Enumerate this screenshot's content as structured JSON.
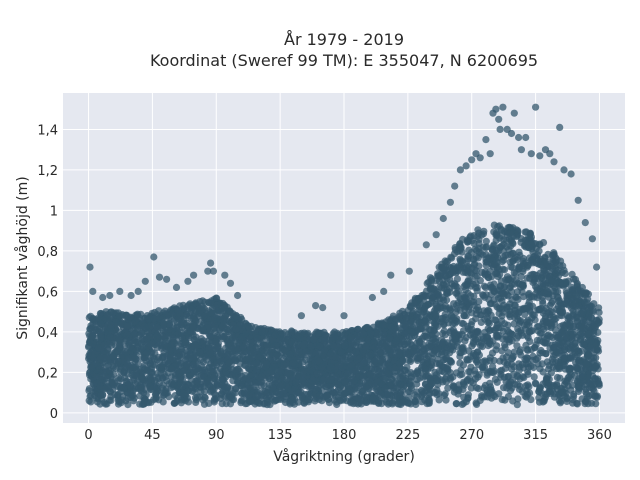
{
  "chart_data": {
    "type": "scatter",
    "title_lines": [
      "År 1979 - 2019",
      "Koordinat (Sweref 99 TM): E 355047, N 6200695"
    ],
    "xlabel": "Vågriktning (grader)",
    "ylabel": "Signifikant våghöjd (m)",
    "xlim": [
      -18,
      378
    ],
    "ylim": [
      -0.05,
      1.58
    ],
    "x_ticks": [
      0,
      45,
      90,
      135,
      180,
      225,
      270,
      315,
      360
    ],
    "x_tick_labels": [
      "0",
      "45",
      "90",
      "135",
      "180",
      "225",
      "270",
      "315",
      "360"
    ],
    "y_ticks": [
      0,
      0.2,
      0.4,
      0.6,
      0.8,
      1.0,
      1.2,
      1.4
    ],
    "y_tick_labels": [
      "0",
      "0,2",
      "0,4",
      "0,6",
      "0,8",
      "1",
      "1,2",
      "1,4"
    ],
    "grid": true,
    "colors": {
      "marker": "#34586e",
      "plot_bg": "#e5e8f0",
      "grid": "#ffffff"
    },
    "density_envelope": {
      "x": [
        0,
        10,
        20,
        30,
        45,
        60,
        75,
        90,
        105,
        120,
        135,
        150,
        165,
        180,
        195,
        210,
        225,
        240,
        255,
        270,
        285,
        300,
        315,
        330,
        345,
        360
      ],
      "y_upper": [
        0.48,
        0.5,
        0.5,
        0.49,
        0.5,
        0.52,
        0.55,
        0.57,
        0.48,
        0.42,
        0.41,
        0.4,
        0.4,
        0.4,
        0.42,
        0.46,
        0.52,
        0.66,
        0.8,
        0.9,
        0.93,
        0.92,
        0.88,
        0.78,
        0.65,
        0.52
      ],
      "y_lower": 0.04
    },
    "outliers": [
      {
        "x": 1,
        "y": 0.72
      },
      {
        "x": 3,
        "y": 0.6
      },
      {
        "x": 10,
        "y": 0.57
      },
      {
        "x": 15,
        "y": 0.58
      },
      {
        "x": 22,
        "y": 0.6
      },
      {
        "x": 30,
        "y": 0.58
      },
      {
        "x": 35,
        "y": 0.6
      },
      {
        "x": 40,
        "y": 0.65
      },
      {
        "x": 46,
        "y": 0.77
      },
      {
        "x": 50,
        "y": 0.67
      },
      {
        "x": 55,
        "y": 0.66
      },
      {
        "x": 62,
        "y": 0.62
      },
      {
        "x": 70,
        "y": 0.65
      },
      {
        "x": 74,
        "y": 0.68
      },
      {
        "x": 84,
        "y": 0.7
      },
      {
        "x": 86,
        "y": 0.74
      },
      {
        "x": 88,
        "y": 0.7
      },
      {
        "x": 96,
        "y": 0.68
      },
      {
        "x": 100,
        "y": 0.64
      },
      {
        "x": 105,
        "y": 0.58
      },
      {
        "x": 150,
        "y": 0.48
      },
      {
        "x": 160,
        "y": 0.53
      },
      {
        "x": 165,
        "y": 0.52
      },
      {
        "x": 180,
        "y": 0.48
      },
      {
        "x": 200,
        "y": 0.57
      },
      {
        "x": 208,
        "y": 0.6
      },
      {
        "x": 213,
        "y": 0.68
      },
      {
        "x": 226,
        "y": 0.7
      },
      {
        "x": 238,
        "y": 0.83
      },
      {
        "x": 245,
        "y": 0.88
      },
      {
        "x": 250,
        "y": 0.96
      },
      {
        "x": 255,
        "y": 1.04
      },
      {
        "x": 258,
        "y": 1.12
      },
      {
        "x": 262,
        "y": 1.2
      },
      {
        "x": 266,
        "y": 1.22
      },
      {
        "x": 270,
        "y": 1.25
      },
      {
        "x": 273,
        "y": 1.28
      },
      {
        "x": 276,
        "y": 1.26
      },
      {
        "x": 280,
        "y": 1.35
      },
      {
        "x": 283,
        "y": 1.28
      },
      {
        "x": 285,
        "y": 1.48
      },
      {
        "x": 287,
        "y": 1.5
      },
      {
        "x": 289,
        "y": 1.45
      },
      {
        "x": 290,
        "y": 1.4
      },
      {
        "x": 292,
        "y": 1.51
      },
      {
        "x": 295,
        "y": 1.4
      },
      {
        "x": 298,
        "y": 1.38
      },
      {
        "x": 300,
        "y": 1.48
      },
      {
        "x": 303,
        "y": 1.36
      },
      {
        "x": 305,
        "y": 1.3
      },
      {
        "x": 308,
        "y": 1.36
      },
      {
        "x": 312,
        "y": 1.28
      },
      {
        "x": 315,
        "y": 1.51
      },
      {
        "x": 318,
        "y": 1.27
      },
      {
        "x": 322,
        "y": 1.3
      },
      {
        "x": 325,
        "y": 1.28
      },
      {
        "x": 328,
        "y": 1.24
      },
      {
        "x": 332,
        "y": 1.41
      },
      {
        "x": 335,
        "y": 1.2
      },
      {
        "x": 340,
        "y": 1.18
      },
      {
        "x": 345,
        "y": 1.05
      },
      {
        "x": 350,
        "y": 0.94
      },
      {
        "x": 355,
        "y": 0.86
      },
      {
        "x": 358,
        "y": 0.72
      }
    ]
  }
}
